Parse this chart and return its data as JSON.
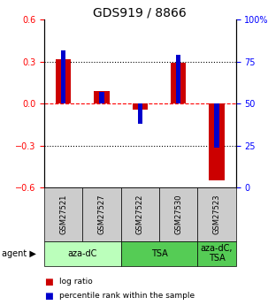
{
  "title": "GDS919 / 8866",
  "samples": [
    "GSM27521",
    "GSM27527",
    "GSM27522",
    "GSM27530",
    "GSM27523"
  ],
  "log_ratios": [
    0.32,
    0.09,
    -0.04,
    0.29,
    -0.55
  ],
  "percentile_ranks": [
    82,
    57,
    38,
    79,
    24
  ],
  "ylim_left": [
    -0.6,
    0.6
  ],
  "ylim_right": [
    0,
    100
  ],
  "yticks_left": [
    -0.6,
    -0.3,
    0.0,
    0.3,
    0.6
  ],
  "yticks_right": [
    0,
    25,
    50,
    75,
    100
  ],
  "bar_color_red": "#cc0000",
  "bar_color_blue": "#0000cc",
  "legend_items": [
    {
      "color": "#cc0000",
      "label": "log ratio"
    },
    {
      "color": "#0000cc",
      "label": "percentile rank within the sample"
    }
  ],
  "bar_width": 0.4,
  "blue_bar_width": 0.12,
  "title_fontsize": 10,
  "tick_fontsize": 7,
  "sample_fontsize": 6,
  "agent_fontsize": 7,
  "legend_fontsize": 6.5
}
